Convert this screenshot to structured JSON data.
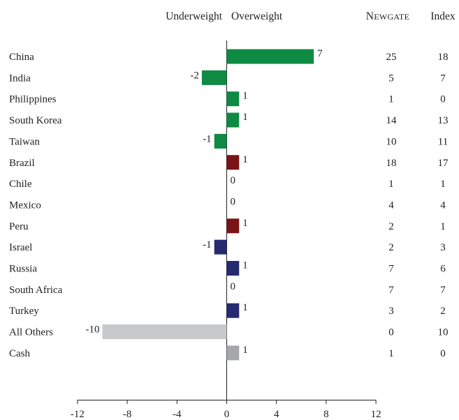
{
  "chart_data": {
    "type": "bar",
    "orientation": "horizontal",
    "header": {
      "left_label": "Underweight",
      "right_label": "Overweight",
      "col1_label": "Newgate",
      "col2_label": "Index"
    },
    "categories": [
      "China",
      "India",
      "Philippines",
      "South Korea",
      "Taiwan",
      "Brazil",
      "Chile",
      "Mexico",
      "Peru",
      "Israel",
      "Russia",
      "South Africa",
      "Turkey",
      "All Others",
      "Cash"
    ],
    "values": [
      7,
      -2,
      1,
      1,
      -1,
      1,
      0,
      0,
      1,
      -1,
      1,
      0,
      1,
      -10,
      1
    ],
    "newgate": [
      25,
      5,
      1,
      14,
      10,
      18,
      1,
      4,
      2,
      2,
      7,
      7,
      3,
      0,
      1
    ],
    "index": [
      18,
      7,
      0,
      13,
      11,
      17,
      1,
      4,
      1,
      3,
      6,
      7,
      2,
      10,
      0
    ],
    "bar_colors": [
      "#0e8a43",
      "#0e8a43",
      "#0e8a43",
      "#0e8a43",
      "#0e8a43",
      "#7a1418",
      "#7a1418",
      "#7a1418",
      "#7a1418",
      "#262a70",
      "#262a70",
      "#262a70",
      "#262a70",
      "#c8c9cb",
      "#a6a7a9"
    ],
    "xlim": [
      -12,
      12
    ],
    "xticks": [
      -12,
      -8,
      -4,
      0,
      4,
      8,
      12
    ],
    "grid": false
  }
}
